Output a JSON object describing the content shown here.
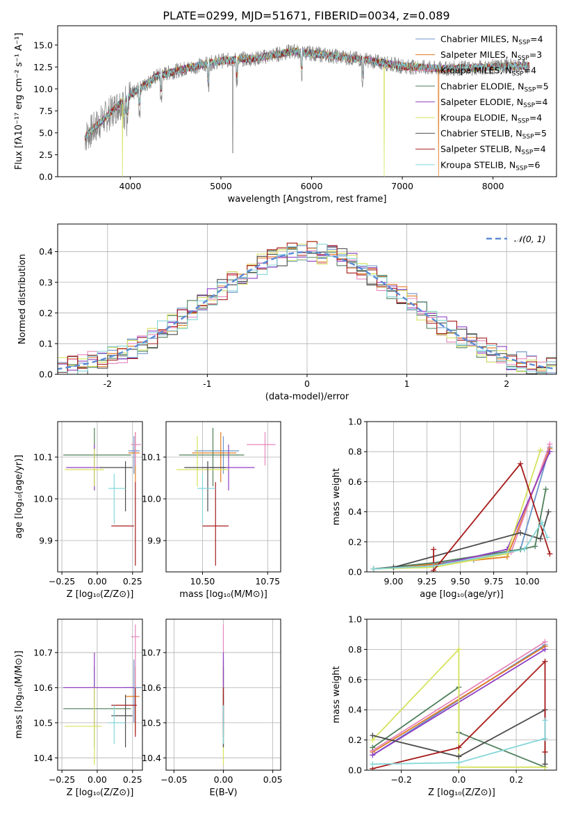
{
  "colors": [
    "#6b93c9",
    "#e07a1f",
    "#e685bb",
    "#4e7f5a",
    "#8e3fc2",
    "#d6e25a",
    "#4a4a4a",
    "#a61a1a",
    "#85d6d9"
  ],
  "chart_data": [
    {
      "id": "spectrum",
      "type": "line",
      "title": "PLATE=0299, MJD=51671, FIBERID=0034, z=0.089",
      "xlabel": "wavelength [Angstrom, rest frame]",
      "ylabel": "Flux [fλ10⁻¹⁷ erg cm⁻² s⁻¹ A⁻¹]",
      "xlim": [
        3200,
        8700
      ],
      "ylim": [
        0,
        17.2
      ],
      "xticks": [
        4000,
        5000,
        6000,
        7000,
        8000
      ],
      "yticks": [
        0.0,
        2.5,
        5.0,
        7.5,
        10.0,
        12.5,
        15.0
      ],
      "data_color": "#808080",
      "continuum": [
        [
          3500,
          4.5
        ],
        [
          3700,
          6.5
        ],
        [
          3900,
          8.5
        ],
        [
          4100,
          10.0
        ],
        [
          4300,
          11.5
        ],
        [
          4600,
          12.3
        ],
        [
          5000,
          13.2
        ],
        [
          5400,
          13.5
        ],
        [
          5800,
          14.3
        ],
        [
          6200,
          13.8
        ],
        [
          6600,
          13.3
        ],
        [
          7000,
          12.6
        ],
        [
          7400,
          12.3
        ],
        [
          7800,
          12.4
        ],
        [
          8200,
          12.6
        ],
        [
          8400,
          12.6
        ]
      ],
      "model_x_range": [
        3500,
        8400
      ],
      "model_noise": 0.45,
      "data_noise": 0.9,
      "legend": [
        "Chabrier MILES, N_SSP=4",
        "Salpeter MILES, N_SSP=3",
        "Kroupa MILES, N_SSP=4",
        "Chabrier ELODIE, N_SSP=5",
        "Salpeter ELODIE, N_SSP=4",
        "Kroupa ELODIE, N_SSP=4",
        "Chabrier STELIB, N_SSP=5",
        "Salpeter STELIB, N_SSP=4",
        "Kroupa STELIB, N_SSP=6"
      ]
    },
    {
      "id": "residuals",
      "type": "histogram",
      "xlabel": "(data-model)/error",
      "ylabel": "Normed distribution",
      "xlim": [
        -2.5,
        2.5
      ],
      "ylim": [
        0,
        0.49
      ],
      "xticks": [
        -2,
        -1,
        0,
        1,
        2
      ],
      "yticks": [
        0.0,
        0.1,
        0.2,
        0.3,
        0.4
      ],
      "bin_width": 0.1,
      "legend": "𝒩(0, 1)",
      "gauss_color": "#5b8bd6"
    },
    {
      "id": "age_vs_Z",
      "type": "errorbar",
      "xlabel": "Z [log₁₀(Z/Z⊙)]",
      "ylabel": "age  [log₁₀(age/yr)]",
      "xlim": [
        -0.28,
        0.32
      ],
      "ylim": [
        9.825,
        10.185
      ],
      "xticks": [
        -0.25,
        0.0,
        0.25
      ],
      "yticks": [
        9.9,
        10.0,
        10.1
      ],
      "xtick_labels": [
        "−0.25",
        "0.00",
        "0.25"
      ],
      "points": [
        {
          "x": 0.26,
          "y": 10.115,
          "xe": [
            0.22,
            0.3
          ],
          "ye": [
            10.06,
            10.15
          ]
        },
        {
          "x": 0.27,
          "y": 10.11,
          "xe": [
            0.22,
            0.3
          ],
          "ye": [
            10.04,
            10.16
          ]
        },
        {
          "x": 0.27,
          "y": 10.13,
          "xe": [
            0.24,
            0.31
          ],
          "ye": [
            10.08,
            10.16
          ]
        },
        {
          "x": -0.02,
          "y": 10.105,
          "xe": [
            -0.24,
            0.24
          ],
          "ye": [
            10.03,
            10.17
          ]
        },
        {
          "x": -0.02,
          "y": 10.075,
          "xe": [
            -0.22,
            0.03
          ],
          "ye": [
            10.02,
            10.13
          ]
        },
        {
          "x": -0.02,
          "y": 10.07,
          "xe": [
            -0.23,
            0.05
          ],
          "ye": [
            10.03,
            10.12
          ]
        },
        {
          "x": 0.2,
          "y": 10.075,
          "xe": [
            0.02,
            0.25
          ],
          "ye": [
            9.97,
            10.09
          ]
        },
        {
          "x": 0.27,
          "y": 9.935,
          "xe": [
            0.1,
            0.26
          ],
          "ye": [
            9.84,
            10.04
          ]
        },
        {
          "x": 0.12,
          "y": 10.025,
          "xe": [
            0.08,
            0.2
          ],
          "ye": [
            9.94,
            10.06
          ]
        }
      ]
    },
    {
      "id": "age_vs_mass",
      "type": "errorbar",
      "xlabel": "mass [log₁₀(M/M⊙)]",
      "ylabel": "",
      "xlim": [
        10.36,
        10.8
      ],
      "ylim": [
        9.825,
        10.185
      ],
      "xticks": [
        10.5,
        10.75
      ],
      "yticks": [
        9.9,
        10.0,
        10.1
      ],
      "xtick_labels": [
        "10.50",
        "10.75"
      ],
      "points": [
        {
          "x": 10.58,
          "y": 10.115,
          "xe": [
            10.47,
            10.64
          ],
          "ye": [
            10.06,
            10.15
          ]
        },
        {
          "x": 10.57,
          "y": 10.11,
          "xe": [
            10.46,
            10.63
          ],
          "ye": [
            10.04,
            10.16
          ]
        },
        {
          "x": 10.74,
          "y": 10.13,
          "xe": [
            10.67,
            10.78
          ],
          "ye": [
            10.08,
            10.16
          ]
        },
        {
          "x": 10.54,
          "y": 10.105,
          "xe": [
            10.41,
            10.66
          ],
          "ye": [
            10.03,
            10.17
          ]
        },
        {
          "x": 10.6,
          "y": 10.075,
          "xe": [
            10.5,
            10.7
          ],
          "ye": [
            10.02,
            10.13
          ]
        },
        {
          "x": 10.48,
          "y": 10.07,
          "xe": [
            10.4,
            10.6
          ],
          "ye": [
            10.03,
            10.15
          ]
        },
        {
          "x": 10.52,
          "y": 10.075,
          "xe": [
            10.43,
            10.59
          ],
          "ye": [
            9.97,
            10.09
          ]
        },
        {
          "x": 10.55,
          "y": 9.935,
          "xe": [
            10.5,
            10.6
          ],
          "ye": [
            9.84,
            10.04
          ]
        },
        {
          "x": 10.5,
          "y": 10.025,
          "xe": [
            10.48,
            10.55
          ],
          "ye": [
            9.94,
            10.06
          ]
        }
      ]
    },
    {
      "id": "weight_vs_age",
      "type": "line",
      "xlabel": "age  [log₁₀(age/yr)]",
      "ylabel": "mass weight",
      "xlim": [
        8.8,
        10.22
      ],
      "ylim": [
        0.0,
        1.0
      ],
      "xticks": [
        9.0,
        9.25,
        9.5,
        9.75,
        10.0
      ],
      "yticks": [
        0.0,
        0.2,
        0.4,
        0.6,
        0.8,
        1.0
      ],
      "xtick_labels": [
        "9.00",
        "9.25",
        "9.50",
        "9.75",
        "10.00"
      ],
      "ytick_labels": [
        "0.0",
        "0.2",
        "0.4",
        "0.6",
        "0.8",
        "1.0"
      ],
      "series": [
        {
          "pts": [
            [
              8.85,
              0.02
            ],
            [
              9.0,
              0.03
            ],
            [
              9.6,
              0.08
            ],
            [
              9.95,
              0.15
            ],
            [
              10.17,
              0.83
            ]
          ]
        },
        {
          "pts": [
            [
              8.85,
              0.02
            ],
            [
              9.3,
              0.05
            ],
            [
              9.85,
              0.1
            ],
            [
              10.17,
              0.82
            ]
          ]
        },
        {
          "pts": [
            [
              8.85,
              0.02
            ],
            [
              9.3,
              0.06
            ],
            [
              9.88,
              0.13
            ],
            [
              10.17,
              0.85
            ]
          ]
        },
        {
          "pts": [
            [
              8.85,
              0.02
            ],
            [
              9.3,
              0.06
            ],
            [
              9.95,
              0.15
            ],
            [
              10.06,
              0.17
            ],
            [
              10.14,
              0.55
            ]
          ]
        },
        {
          "pts": [
            [
              8.85,
              0.02
            ],
            [
              9.3,
              0.04
            ],
            [
              9.85,
              0.15
            ],
            [
              10.17,
              0.8
            ]
          ]
        },
        {
          "pts": [
            [
              8.85,
              0.02
            ],
            [
              9.3,
              0.03
            ],
            [
              9.85,
              0.12
            ],
            [
              10.1,
              0.81
            ]
          ]
        },
        {
          "pts": [
            [
              8.85,
              0.02
            ],
            [
              9.0,
              0.03
            ],
            [
              9.95,
              0.26
            ],
            [
              10.1,
              0.22
            ],
            [
              10.16,
              0.4
            ]
          ]
        },
        {
          "pts": [
            [
              9.3,
              0.15
            ],
            [
              9.3,
              0.01
            ],
            [
              9.95,
              0.72
            ],
            [
              10.17,
              0.12
            ]
          ]
        },
        {
          "pts": [
            [
              8.85,
              0.02
            ],
            [
              9.3,
              0.04
            ],
            [
              9.98,
              0.15
            ],
            [
              10.11,
              0.33
            ],
            [
              10.15,
              0.23
            ]
          ]
        }
      ]
    },
    {
      "id": "mass_vs_Z",
      "type": "errorbar",
      "xlabel": "Z [log₁₀(Z/Z⊙)]",
      "ylabel": "mass [log₁₀(M/M⊙)]",
      "xlim": [
        -0.28,
        0.32
      ],
      "ylim": [
        10.365,
        10.795
      ],
      "xticks": [
        -0.25,
        0.0,
        0.25
      ],
      "yticks": [
        10.4,
        10.5,
        10.6,
        10.7
      ],
      "xtick_labels": [
        "−0.25",
        "0.00",
        "0.25"
      ],
      "points": [
        {
          "x": 0.26,
          "y": 10.6,
          "xe": [
            0.2,
            0.31
          ],
          "ye": [
            10.5,
            10.68
          ]
        },
        {
          "x": 0.27,
          "y": 10.575,
          "xe": [
            0.2,
            0.3
          ],
          "ye": [
            10.47,
            10.66
          ]
        },
        {
          "x": 0.27,
          "y": 10.745,
          "xe": [
            0.24,
            0.3
          ],
          "ye": [
            10.58,
            10.78
          ]
        },
        {
          "x": -0.02,
          "y": 10.54,
          "xe": [
            -0.24,
            0.24
          ],
          "ye": [
            10.43,
            10.66
          ]
        },
        {
          "x": -0.02,
          "y": 10.6,
          "xe": [
            -0.24,
            0.26
          ],
          "ye": [
            10.49,
            10.7
          ]
        },
        {
          "x": -0.02,
          "y": 10.49,
          "xe": [
            -0.23,
            0.03
          ],
          "ye": [
            10.38,
            10.6
          ]
        },
        {
          "x": 0.2,
          "y": 10.52,
          "xe": [
            0.1,
            0.25
          ],
          "ye": [
            10.43,
            10.58
          ]
        },
        {
          "x": 0.27,
          "y": 10.55,
          "xe": [
            0.1,
            0.28
          ],
          "ye": [
            10.46,
            10.6
          ]
        },
        {
          "x": 0.12,
          "y": 10.5,
          "xe": [
            0.08,
            0.2
          ],
          "ye": [
            10.44,
            10.55
          ]
        }
      ]
    },
    {
      "id": "mass_vs_EBV",
      "type": "errorbar",
      "xlabel": "E(B-V)",
      "ylabel": "",
      "xlim": [
        -0.058,
        0.058
      ],
      "ylim": [
        10.365,
        10.795
      ],
      "xticks": [
        -0.05,
        0.0,
        0.05
      ],
      "yticks": [
        10.4,
        10.5,
        10.6,
        10.7
      ],
      "xtick_labels": [
        "−0.05",
        "0.00",
        "0.05"
      ],
      "points": [
        {
          "x": 0.0,
          "y": 10.6,
          "xe": [
            0,
            0
          ],
          "ye": [
            10.5,
            10.68
          ]
        },
        {
          "x": 0.0,
          "y": 10.575,
          "xe": [
            0,
            0
          ],
          "ye": [
            10.47,
            10.66
          ]
        },
        {
          "x": 0.0,
          "y": 10.745,
          "xe": [
            0,
            0
          ],
          "ye": [
            10.58,
            10.78
          ]
        },
        {
          "x": 0.0,
          "y": 10.54,
          "xe": [
            0,
            0
          ],
          "ye": [
            10.43,
            10.66
          ]
        },
        {
          "x": 0.0,
          "y": 10.6,
          "xe": [
            0,
            0
          ],
          "ye": [
            10.49,
            10.7
          ]
        },
        {
          "x": 0.0,
          "y": 10.49,
          "xe": [
            0,
            0
          ],
          "ye": [
            10.38,
            10.6
          ]
        },
        {
          "x": 0.0,
          "y": 10.52,
          "xe": [
            0,
            0
          ],
          "ye": [
            10.43,
            10.58
          ]
        },
        {
          "x": 0.0,
          "y": 10.55,
          "xe": [
            0,
            0
          ],
          "ye": [
            10.46,
            10.6
          ]
        },
        {
          "x": 0.0,
          "y": 10.5,
          "xe": [
            0,
            0
          ],
          "ye": [
            10.44,
            10.55
          ]
        }
      ]
    },
    {
      "id": "weight_vs_Z",
      "type": "line",
      "xlabel": "Z [log₁₀(Z/Z⊙)]",
      "ylabel": "mass weight",
      "xlim": [
        -0.32,
        0.34
      ],
      "ylim": [
        0.0,
        1.0
      ],
      "xticks": [
        -0.2,
        0.0,
        0.2
      ],
      "yticks": [
        0.0,
        0.2,
        0.4,
        0.6,
        0.8,
        1.0
      ],
      "xtick_labels": [
        "−0.2",
        "0.0",
        "0.2"
      ],
      "ytick_labels": [
        "0.0",
        "0.2",
        "0.4",
        "0.6",
        "0.8",
        "1.0"
      ],
      "series": [
        {
          "pts": [
            [
              -0.3,
              0.1
            ],
            [
              0.3,
              0.83
            ]
          ]
        },
        {
          "pts": [
            [
              -0.3,
              0.12
            ],
            [
              0.3,
              0.82
            ]
          ]
        },
        {
          "pts": [
            [
              -0.3,
              0.13
            ],
            [
              0.3,
              0.85
            ]
          ]
        },
        {
          "pts": [
            [
              -0.3,
              0.15
            ],
            [
              0.0,
              0.55
            ],
            [
              0.0,
              0.25
            ],
            [
              0.3,
              0.02
            ]
          ]
        },
        {
          "pts": [
            [
              -0.3,
              0.1
            ],
            [
              0.3,
              0.8
            ]
          ]
        },
        {
          "pts": [
            [
              -0.3,
              0.2
            ],
            [
              0.0,
              0.8
            ],
            [
              0.0,
              0.02
            ],
            [
              0.3,
              0.02
            ]
          ]
        },
        {
          "pts": [
            [
              -0.3,
              0.23
            ],
            [
              0.0,
              0.09
            ],
            [
              0.3,
              0.4
            ],
            [
              0.3,
              0.04
            ]
          ]
        },
        {
          "pts": [
            [
              -0.3,
              0.01
            ],
            [
              0.0,
              0.15
            ],
            [
              0.3,
              0.72
            ],
            [
              0.3,
              0.12
            ]
          ]
        },
        {
          "pts": [
            [
              -0.3,
              0.04
            ],
            [
              0.0,
              0.05
            ],
            [
              0.3,
              0.21
            ],
            [
              0.3,
              0.33
            ]
          ]
        }
      ]
    }
  ]
}
